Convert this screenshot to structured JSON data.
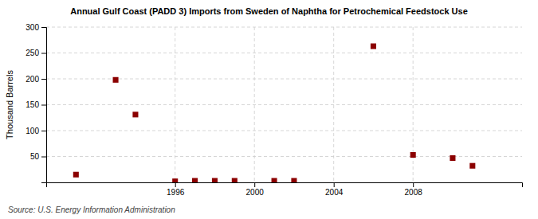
{
  "chart_data": {
    "type": "scatter",
    "title": "Annual Gulf Coast (PADD 3) Imports from Sweden of Naphtha for Petrochemical Feedstock Use",
    "ylabel": "Thousand Barrels",
    "annotations": [
      "Source: U.S. Energy Information Administration"
    ],
    "x": [
      1991,
      1993,
      1994,
      1996,
      1997,
      1998,
      1999,
      2001,
      2002,
      2006,
      2008,
      2010,
      2011
    ],
    "values": [
      15,
      198,
      131,
      2,
      3,
      3,
      3,
      3,
      3,
      263,
      53,
      47,
      32
    ],
    "color": "#8b0000",
    "marker": "square",
    "xlim": [
      1989.5,
      2013.5
    ],
    "xticks": [
      1996,
      2000,
      2004,
      2008
    ],
    "ylim": [
      0,
      300
    ],
    "yticks": [
      50,
      100,
      150,
      200,
      250,
      300
    ],
    "grid": true
  }
}
